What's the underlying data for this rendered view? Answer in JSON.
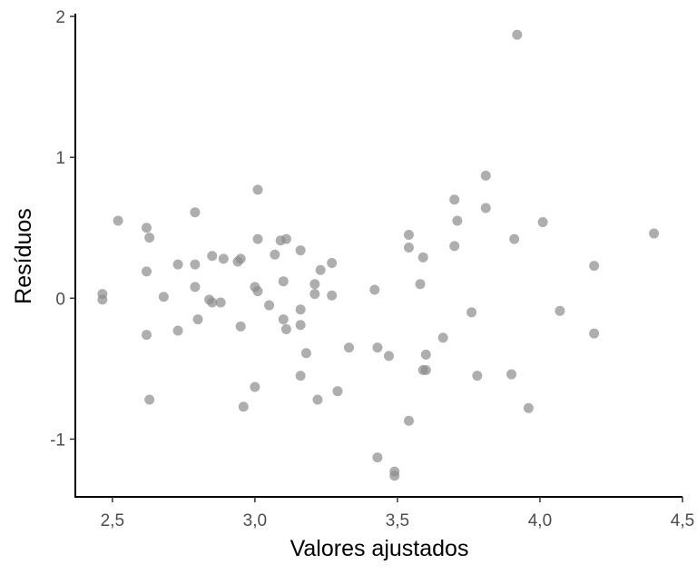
{
  "chart_data": {
    "type": "scatter",
    "x_label": "Valores ajustados",
    "y_label": "Resíduos",
    "color": "#8c8c8c",
    "xlim": [
      2.37,
      4.5
    ],
    "ylim": [
      -1.41,
      2.02
    ],
    "xticks": [
      {
        "value": 2.5,
        "label": "2,5"
      },
      {
        "value": 3.0,
        "label": "3,0"
      },
      {
        "value": 3.5,
        "label": "3,5"
      },
      {
        "value": 4.0,
        "label": "4,0"
      },
      {
        "value": 4.5,
        "label": "4,5"
      }
    ],
    "yticks": [
      -1,
      0,
      1,
      2
    ],
    "x": [
      2.465,
      2.465,
      2.52,
      2.62,
      2.63,
      2.62,
      2.62,
      2.63,
      2.68,
      2.73,
      2.73,
      2.79,
      2.79,
      2.79,
      2.8,
      2.84,
      2.85,
      2.85,
      2.88,
      2.89,
      2.94,
      2.95,
      2.95,
      2.96,
      3.01,
      3.0,
      3.01,
      3.01,
      3.0,
      3.05,
      3.07,
      3.09,
      3.11,
      3.1,
      3.1,
      3.11,
      3.16,
      3.16,
      3.16,
      3.16,
      3.18,
      3.21,
      3.21,
      3.23,
      3.22,
      3.27,
      3.27,
      3.29,
      3.33,
      3.42,
      3.43,
      3.43,
      3.47,
      3.49,
      3.49,
      3.54,
      3.54,
      3.54,
      3.58,
      3.59,
      3.59,
      3.6,
      3.6,
      3.66,
      3.7,
      3.7,
      3.71,
      3.76,
      3.81,
      3.81,
      3.78,
      3.9,
      3.91,
      3.92,
      3.96,
      4.01,
      4.07,
      4.19,
      4.19,
      4.4
    ],
    "y": [
      0.03,
      -0.01,
      0.55,
      0.5,
      0.43,
      0.19,
      -0.26,
      -0.72,
      0.01,
      0.24,
      -0.23,
      0.61,
      0.24,
      0.08,
      -0.15,
      -0.01,
      -0.03,
      0.3,
      -0.03,
      0.28,
      0.26,
      0.28,
      -0.2,
      -0.77,
      0.77,
      0.08,
      0.05,
      0.42,
      -0.63,
      -0.05,
      0.31,
      0.41,
      0.42,
      0.12,
      -0.15,
      -0.22,
      0.34,
      -0.08,
      -0.19,
      -0.55,
      -0.39,
      0.1,
      0.03,
      0.2,
      -0.72,
      0.25,
      0.02,
      -0.66,
      -0.35,
      0.06,
      -1.13,
      -0.35,
      -0.41,
      -1.23,
      -1.26,
      0.45,
      0.36,
      -0.87,
      0.1,
      0.29,
      -0.51,
      -0.51,
      -0.4,
      -0.28,
      0.37,
      0.7,
      0.55,
      -0.1,
      0.87,
      0.64,
      -0.55,
      -0.54,
      0.42,
      1.87,
      -0.78,
      0.54,
      -0.09,
      0.23,
      -0.25,
      0.46
    ]
  }
}
